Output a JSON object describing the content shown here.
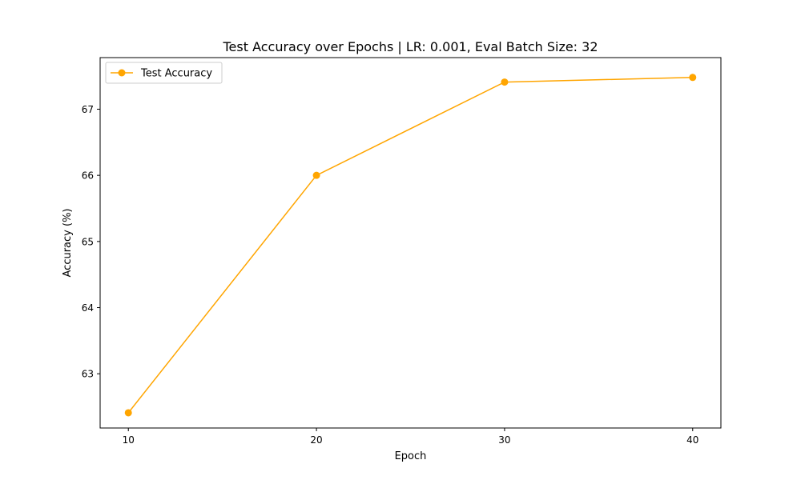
{
  "chart_data": {
    "type": "line",
    "title": "Test Accuracy over Epochs | LR: 0.001, Eval Batch Size: 32",
    "xlabel": "Epoch",
    "ylabel": "Accuracy (%)",
    "xlim": [
      8.5,
      41.5
    ],
    "ylim": [
      62.18,
      67.78
    ],
    "xticks": [
      10,
      20,
      30,
      40
    ],
    "yticks": [
      63,
      64,
      65,
      66,
      67
    ],
    "grid": false,
    "legend_position": "upper left",
    "series": [
      {
        "name": "Test Accuracy",
        "color": "#FFA500",
        "marker": "circle",
        "x": [
          10,
          20,
          30,
          40
        ],
        "y": [
          62.41,
          66.0,
          67.41,
          67.48
        ]
      }
    ]
  }
}
